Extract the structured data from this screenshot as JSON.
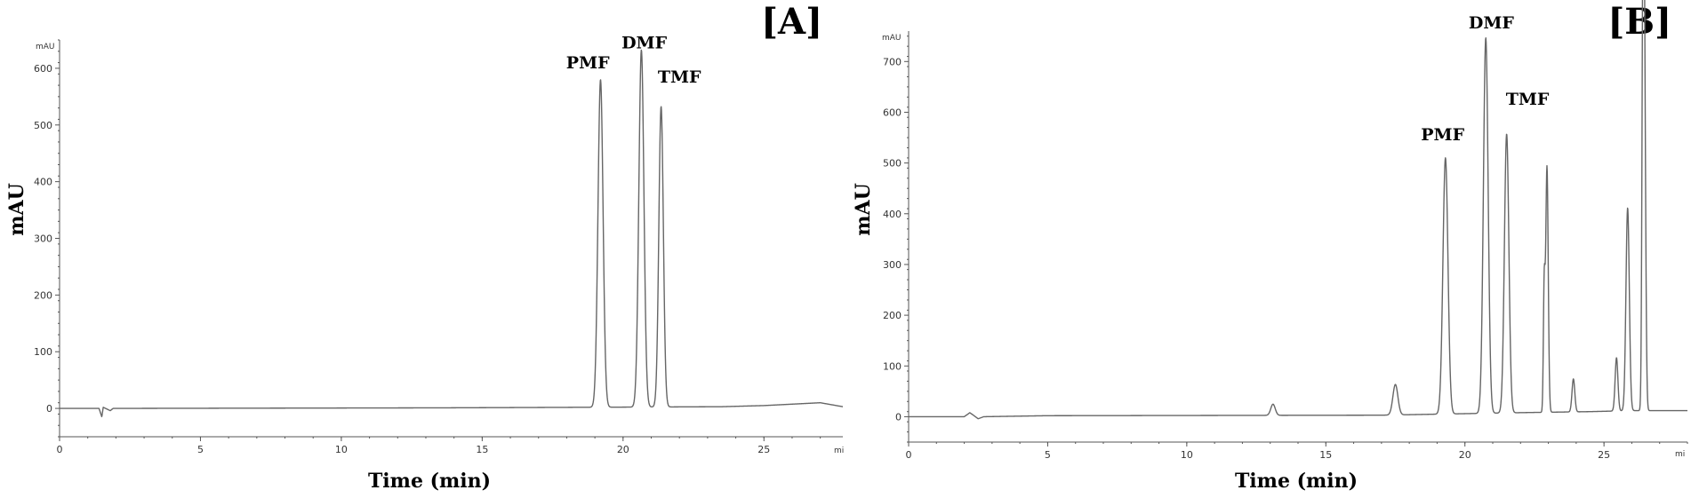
{
  "chart_data": [
    {
      "type": "line",
      "panel_label": "[A]",
      "title": "",
      "xlabel": "Time (min)",
      "ylabel": "mAU",
      "y_unit_label": "mAU",
      "x_unit_label": "mi",
      "xlim": [
        0,
        27.8
      ],
      "ylim": [
        -50,
        650
      ],
      "x_ticks": [
        0,
        5,
        10,
        15,
        20,
        25
      ],
      "y_ticks": [
        0,
        100,
        200,
        300,
        400,
        500,
        600
      ],
      "baseline": [
        [
          0,
          0
        ],
        [
          1.4,
          0
        ],
        [
          1.5,
          -15
        ],
        [
          1.55,
          2
        ],
        [
          1.8,
          -4
        ],
        [
          1.9,
          0
        ],
        [
          13.5,
          1
        ],
        [
          18.8,
          2
        ],
        [
          23.5,
          3
        ],
        [
          25.0,
          5
        ],
        [
          27.0,
          10
        ],
        [
          27.8,
          3
        ]
      ],
      "peaks": [
        {
          "x": 19.2,
          "y": 578,
          "width": 0.09
        },
        {
          "x": 20.65,
          "y": 630,
          "width": 0.09
        },
        {
          "x": 21.35,
          "y": 530,
          "width": 0.08
        }
      ],
      "annotations": [
        {
          "text": "PMF",
          "x": 18.75,
          "y": 600
        },
        {
          "text": "DMF",
          "x": 20.75,
          "y": 635
        },
        {
          "text": "TMF",
          "x": 22.0,
          "y": 575
        }
      ]
    },
    {
      "type": "line",
      "panel_label": "[B]",
      "title": "",
      "xlabel": "Time (min)",
      "ylabel": "mAU",
      "y_unit_label": "mAU",
      "x_unit_label": "mi",
      "xlim": [
        0,
        28.0
      ],
      "ylim": [
        -50,
        760
      ],
      "x_ticks": [
        0,
        5,
        10,
        15,
        20,
        25
      ],
      "y_ticks": [
        0,
        100,
        200,
        300,
        400,
        500,
        600,
        700
      ],
      "baseline": [
        [
          0,
          0
        ],
        [
          2.0,
          0
        ],
        [
          2.2,
          8
        ],
        [
          2.5,
          -4
        ],
        [
          2.7,
          0
        ],
        [
          5.0,
          2
        ],
        [
          17.0,
          3
        ],
        [
          19.0,
          5
        ],
        [
          22.0,
          8
        ],
        [
          24.5,
          10
        ],
        [
          26.0,
          12
        ],
        [
          28.0,
          12
        ]
      ],
      "peaks": [
        {
          "x": 13.1,
          "y": 22,
          "width": 0.08
        },
        {
          "x": 17.5,
          "y": 60,
          "width": 0.09
        },
        {
          "x": 19.3,
          "y": 505,
          "width": 0.09
        },
        {
          "x": 20.75,
          "y": 740,
          "width": 0.085
        },
        {
          "x": 21.5,
          "y": 550,
          "width": 0.08
        },
        {
          "x": 22.85,
          "y": 240,
          "width": 0.03
        },
        {
          "x": 22.95,
          "y": 485,
          "width": 0.045
        },
        {
          "x": 23.9,
          "y": 65,
          "width": 0.05
        },
        {
          "x": 25.45,
          "y": 105,
          "width": 0.05
        },
        {
          "x": 25.85,
          "y": 400,
          "width": 0.06
        },
        {
          "x": 26.4,
          "y": 650,
          "width": 0.035
        },
        {
          "x": 26.45,
          "y": 710,
          "width": 0.045
        }
      ],
      "annotations": [
        {
          "text": "PMF",
          "x": 19.2,
          "y": 545
        },
        {
          "text": "DMF",
          "x": 20.95,
          "y": 765
        },
        {
          "text": "TMF",
          "x": 22.25,
          "y": 615
        }
      ]
    }
  ]
}
